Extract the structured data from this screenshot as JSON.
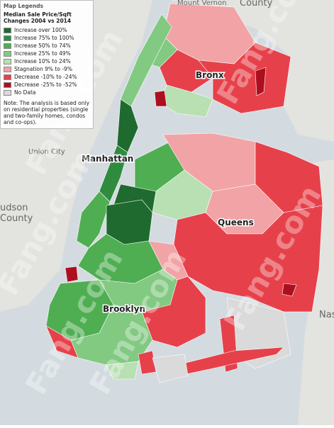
{
  "legend": {
    "heading": "Map Legends",
    "title": "Median Sale Price/Sqft Changes 2004 vs 2014",
    "items": [
      {
        "label": "Increase over 100%",
        "color": "#1f6a2f"
      },
      {
        "label": "Increase 75% to 100%",
        "color": "#2f8c3f"
      },
      {
        "label": "Increase 50% to 74%",
        "color": "#4fae52"
      },
      {
        "label": "Increase 25% to 49%",
        "color": "#82c981"
      },
      {
        "label": "Increase 10% to 24%",
        "color": "#b8e0b2"
      },
      {
        "label": "Stagnation 9% to -9%",
        "color": "#f2a3a5"
      },
      {
        "label": "Decrease -10% to -24%",
        "color": "#e6414a"
      },
      {
        "label": "Decrease -25% to -52%",
        "color": "#ae0f1f"
      },
      {
        "label": "No Data",
        "color": "#dadada"
      }
    ],
    "note": "Note: The analysis is based only on residential properties (single and two-family homes, condos and co-ops)."
  },
  "labels": {
    "bronx": "Bronx",
    "manhattan": "Manhattan",
    "queens": "Queens",
    "brooklyn": "Brooklyn"
  },
  "places": {
    "mount_vernon": "Mount Vernon",
    "county": "County",
    "union_city": "Union City",
    "hudson": "udson",
    "hudson_county": "County",
    "nassau": "Nas"
  },
  "watermark": "Fang.com"
}
